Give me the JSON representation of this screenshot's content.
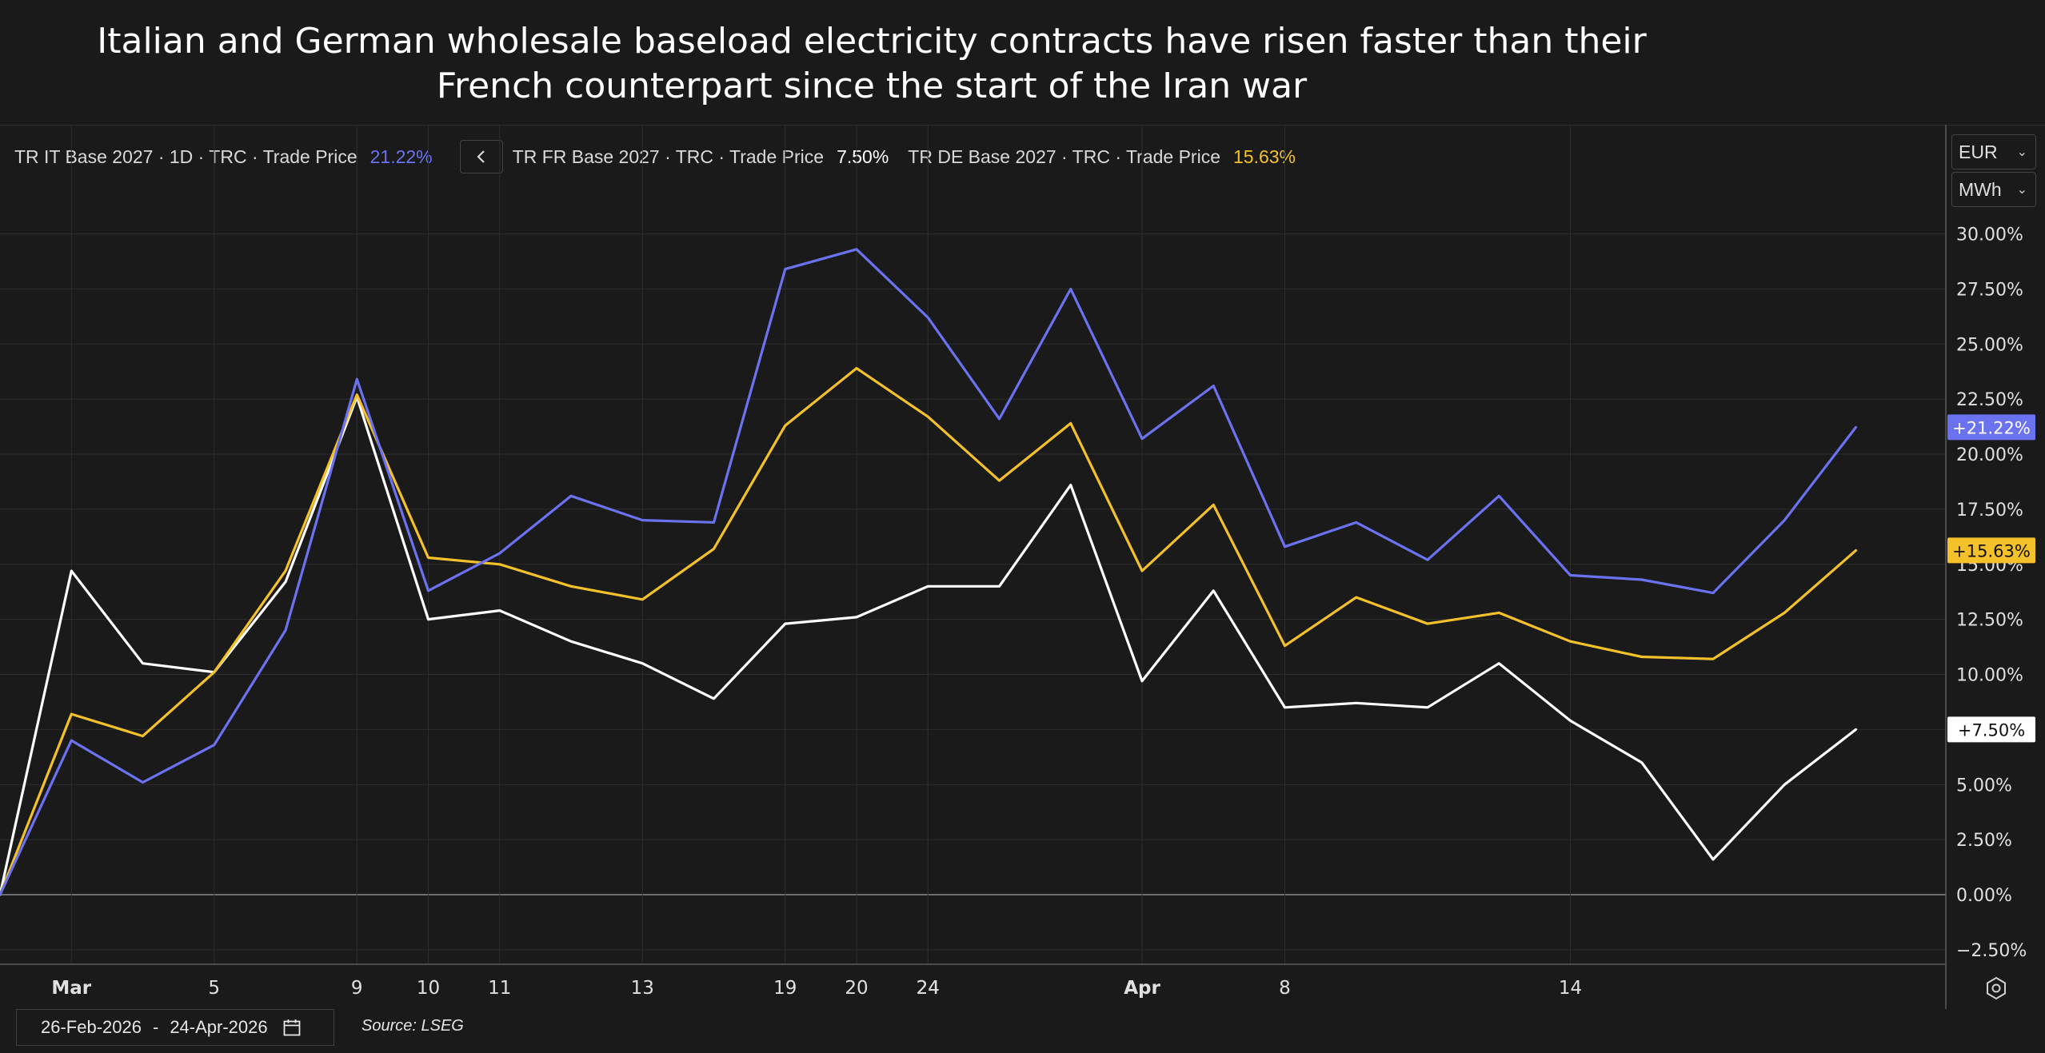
{
  "title": {
    "line1": "Italian and German wholesale baseload electricity contracts have risen faster than their",
    "line2": "French counterpart since the start of the Iran war"
  },
  "legend": {
    "it_label": "TR IT Base 2027 · 1D · TRC · Trade Price",
    "it_value": "21.22%",
    "fr_label": "TR FR Base 2027 · TRC · Trade Price",
    "fr_value": "7.50%",
    "de_label": "TR DE Base 2027 · TRC · Trade Price",
    "de_value": "15.63%"
  },
  "controls": {
    "currency": "EUR",
    "unit": "MWh",
    "collapse_icon": "chevron-left-icon",
    "settings_icon": "settings-icon",
    "calendar_icon": "calendar-icon"
  },
  "footer": {
    "date_from": "26-Feb-2026",
    "date_sep": "-",
    "date_to": "24-Apr-2026",
    "source": "Source: LSEG"
  },
  "colors": {
    "background": "#1a1a1a",
    "it": "#6b72f0",
    "fr": "#ffffff",
    "de": "#f5c12a",
    "grid": "#2d2d2d"
  },
  "chart_data": {
    "type": "line",
    "x": [
      "26-Feb",
      "Mar",
      "3",
      "5",
      "6",
      "9",
      "10",
      "11",
      "12",
      "13",
      "16",
      "19",
      "20",
      "24",
      "25",
      "26",
      "Apr",
      "2",
      "8",
      "9",
      "10",
      "13",
      "14",
      "17",
      "20",
      "22",
      "24"
    ],
    "x_tick_labels": [
      "Mar",
      "5",
      "9",
      "11",
      "13",
      "19",
      "24",
      "Apr",
      "8",
      "10",
      "14",
      "20",
      "24"
    ],
    "y_ticks": [
      "30.00%",
      "27.50%",
      "25.00%",
      "22.50%",
      "20.00%",
      "17.50%",
      "15.00%",
      "12.50%",
      "10.00%",
      "7.50%",
      "5.00%",
      "2.50%",
      "0.00%",
      "−2.50%"
    ],
    "ylim": [
      -2.5,
      30
    ],
    "grid": true,
    "series": [
      {
        "name": "TR IT Base 2027 · 1D · TRC · Trade Price",
        "color": "#6b72f0",
        "last_label": "+21.22%",
        "values": [
          0,
          7.0,
          5.1,
          6.8,
          12.0,
          23.4,
          13.8,
          15.5,
          18.1,
          17.0,
          16.9,
          28.4,
          29.3,
          26.2,
          21.6,
          27.5,
          20.7,
          23.1,
          15.8,
          16.9,
          15.2,
          18.1,
          14.5,
          14.3,
          13.7,
          17.0,
          21.22
        ]
      },
      {
        "name": "TR FR Base 2027 · TRC · Trade Price",
        "color": "#ffffff",
        "last_label": "+7.50%",
        "values": [
          0,
          14.7,
          10.5,
          10.1,
          14.2,
          22.6,
          12.5,
          12.9,
          11.5,
          10.5,
          8.9,
          12.3,
          12.6,
          14.0,
          14.0,
          18.6,
          9.7,
          13.8,
          8.5,
          8.7,
          8.5,
          10.5,
          7.9,
          6.0,
          1.6,
          5.0,
          7.5
        ]
      },
      {
        "name": "TR DE Base 2027 · TRC · Trade Price",
        "color": "#f5c12a",
        "last_label": "+15.63%",
        "values": [
          0,
          8.2,
          7.2,
          10.1,
          14.7,
          22.7,
          15.3,
          15.0,
          14.0,
          13.4,
          15.7,
          21.3,
          23.9,
          21.7,
          18.8,
          21.4,
          14.7,
          17.7,
          11.3,
          13.5,
          12.3,
          12.8,
          11.5,
          10.8,
          10.7,
          12.8,
          15.63
        ]
      }
    ]
  }
}
